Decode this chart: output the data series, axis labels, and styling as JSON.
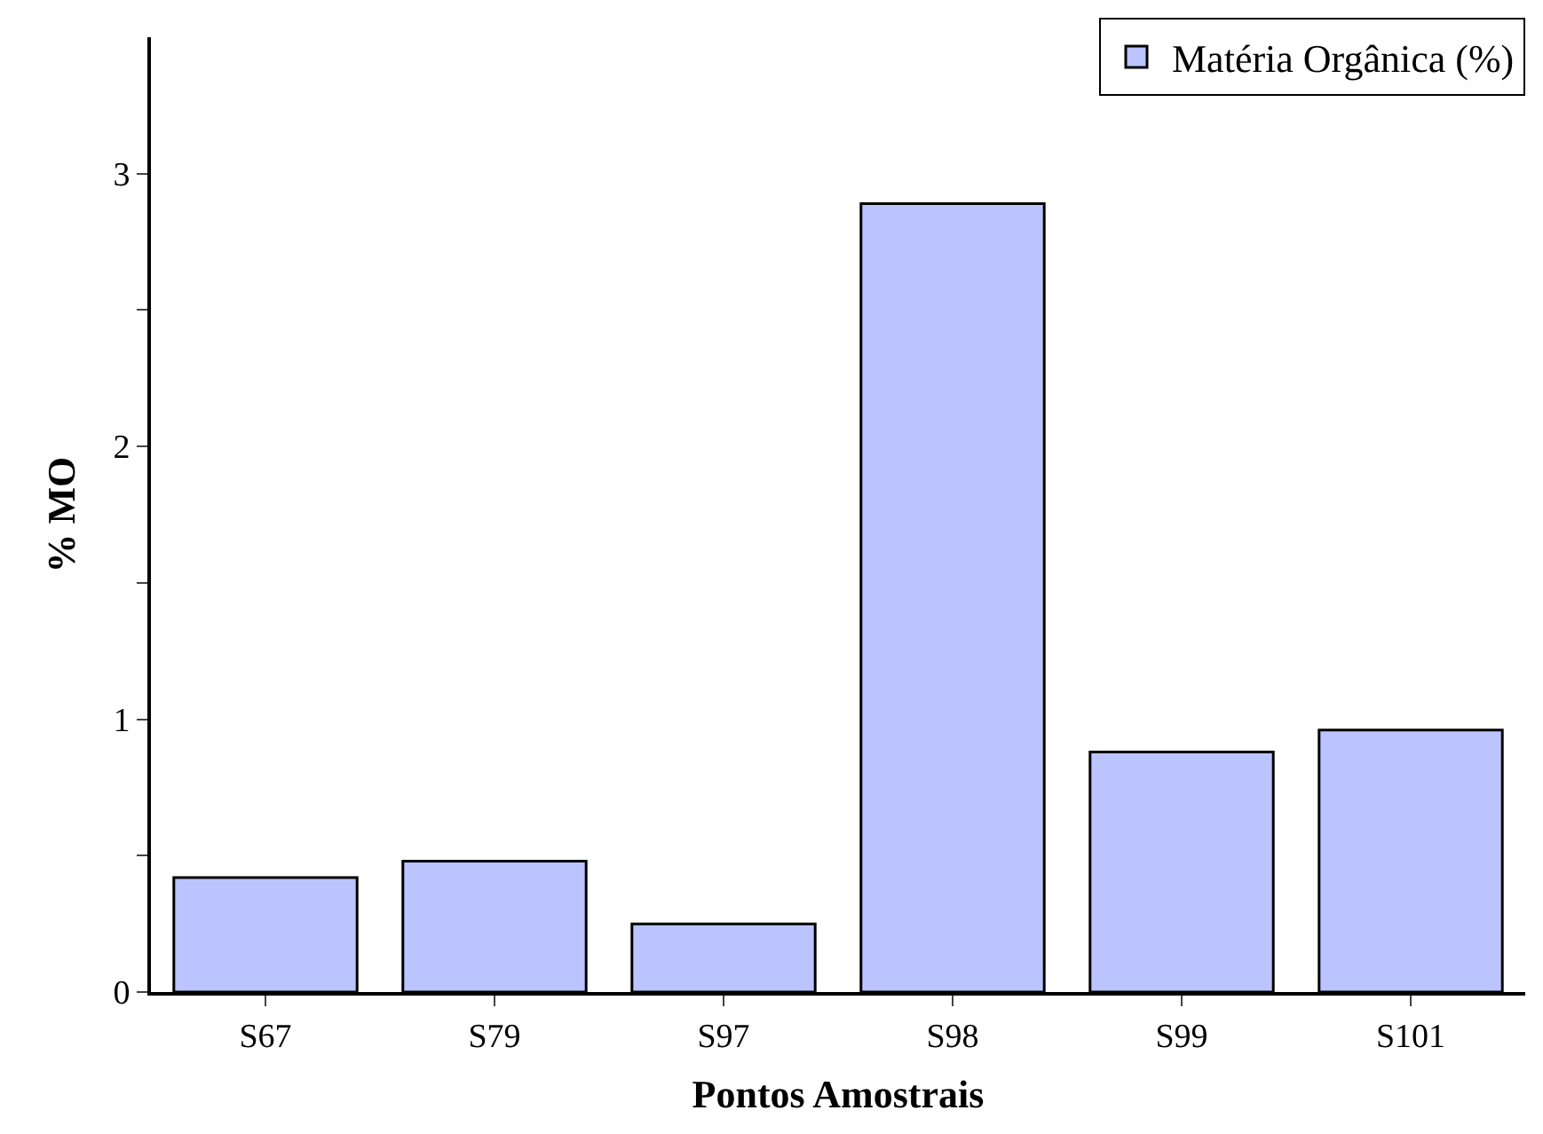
{
  "chart_data": {
    "type": "bar",
    "xlabel": "Pontos Amostrais",
    "ylabel": "% MO",
    "categories": [
      "S67",
      "S79",
      "S97",
      "S98",
      "S99",
      "S101"
    ],
    "series": [
      {
        "name": "Matéria Orgânica (%)",
        "color": "#bbc4ff",
        "values": [
          0.42,
          0.48,
          0.25,
          2.89,
          0.88,
          0.96
        ]
      }
    ],
    "ylim": [
      0,
      3.5
    ],
    "yticks": [
      0,
      {
        "value": 0.5,
        "label": null
      },
      1,
      {
        "value": 1.5,
        "label": null
      },
      2,
      {
        "value": 2.5,
        "label": null
      },
      3
    ],
    "legend": "top right"
  }
}
